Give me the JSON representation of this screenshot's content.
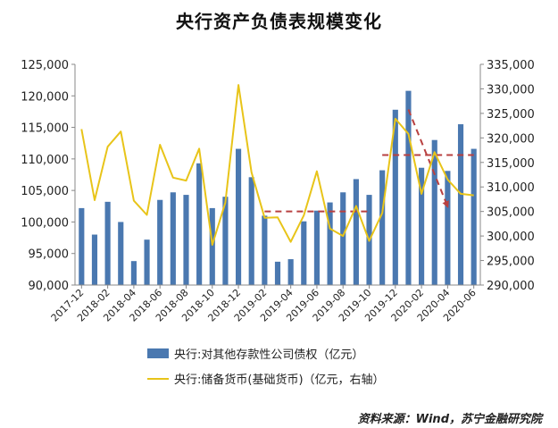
{
  "chart_data": {
    "type": "bar",
    "title": "央行资产负债表规模变化",
    "categories": [
      "2017-12",
      "2018-01",
      "2018-02",
      "2018-03",
      "2018-04",
      "2018-05",
      "2018-06",
      "2018-07",
      "2018-08",
      "2018-09",
      "2018-10",
      "2018-11",
      "2018-12",
      "2019-01",
      "2019-02",
      "2019-03",
      "2019-04",
      "2019-05",
      "2019-06",
      "2019-07",
      "2019-08",
      "2019-09",
      "2019-10",
      "2019-11",
      "2019-12",
      "2020-01",
      "2020-02",
      "2020-03",
      "2020-04",
      "2020-05",
      "2020-06"
    ],
    "x_tick_labels": [
      "2017-12",
      "2018-02",
      "2018-04",
      "2018-06",
      "2018-08",
      "2018-10",
      "2018-12",
      "2019-02",
      "2019-04",
      "2019-06",
      "2019-08",
      "2019-10",
      "2019-12",
      "2020-02",
      "2020-04",
      "2020-06"
    ],
    "series": [
      {
        "name": "央行:对其他存款性公司债权（亿元）",
        "type": "bar",
        "axis": "left",
        "color": "#4a78b0",
        "values": [
          102200,
          98000,
          103200,
          100000,
          93800,
          97200,
          103500,
          104700,
          104300,
          109300,
          102200,
          104000,
          111600,
          107100,
          101000,
          93700,
          94100,
          100100,
          101800,
          103100,
          104700,
          106800,
          104300,
          108200,
          117800,
          120800,
          108600,
          113000,
          108100,
          115500,
          111600
        ]
      },
      {
        "name": "央行:储备货币(基础货币)（亿元，右轴）",
        "type": "line",
        "axis": "right",
        "color": "#e8c419",
        "values": [
          321800,
          307300,
          318200,
          321300,
          307200,
          304300,
          318600,
          311900,
          311300,
          317800,
          298200,
          306800,
          330800,
          313000,
          303700,
          303800,
          298800,
          304200,
          313200,
          301500,
          300000,
          306100,
          299000,
          304700,
          323900,
          320800,
          308600,
          317100,
          311500,
          308600,
          308300
        ]
      }
    ],
    "ylim": [
      90000,
      125000
    ],
    "y_ticks": [
      "90,000",
      "95,000",
      "100,000",
      "105,000",
      "110,000",
      "115,000",
      "120,000",
      "125,000"
    ],
    "y2lim": [
      290000,
      335000
    ],
    "y2_ticks": [
      "290,000",
      "295,000",
      "300,000",
      "305,000",
      "310,000",
      "315,000",
      "320,000",
      "325,000",
      "330,000",
      "335,000"
    ],
    "annotations": [
      {
        "type": "dashed-line",
        "color": "#b84040",
        "axis": "right",
        "from": {
          "x": "2019-02",
          "y": 305000
        },
        "to": {
          "x": "2019-10",
          "y": 305000
        }
      },
      {
        "type": "dashed-line",
        "color": "#b84040",
        "axis": "right",
        "from": {
          "x": "2019-11",
          "y": 316500
        },
        "to": {
          "x": "2020-06",
          "y": 316500
        }
      },
      {
        "type": "dashed-arrow",
        "color": "#b84040",
        "axis": "right",
        "from": {
          "x": "2020-01",
          "y": 325800
        },
        "to": {
          "x": "2020-04",
          "y": 306000
        }
      }
    ],
    "grid": false,
    "legend_position": "bottom"
  },
  "source": "资料来源：Wind，苏宁金融研究院"
}
